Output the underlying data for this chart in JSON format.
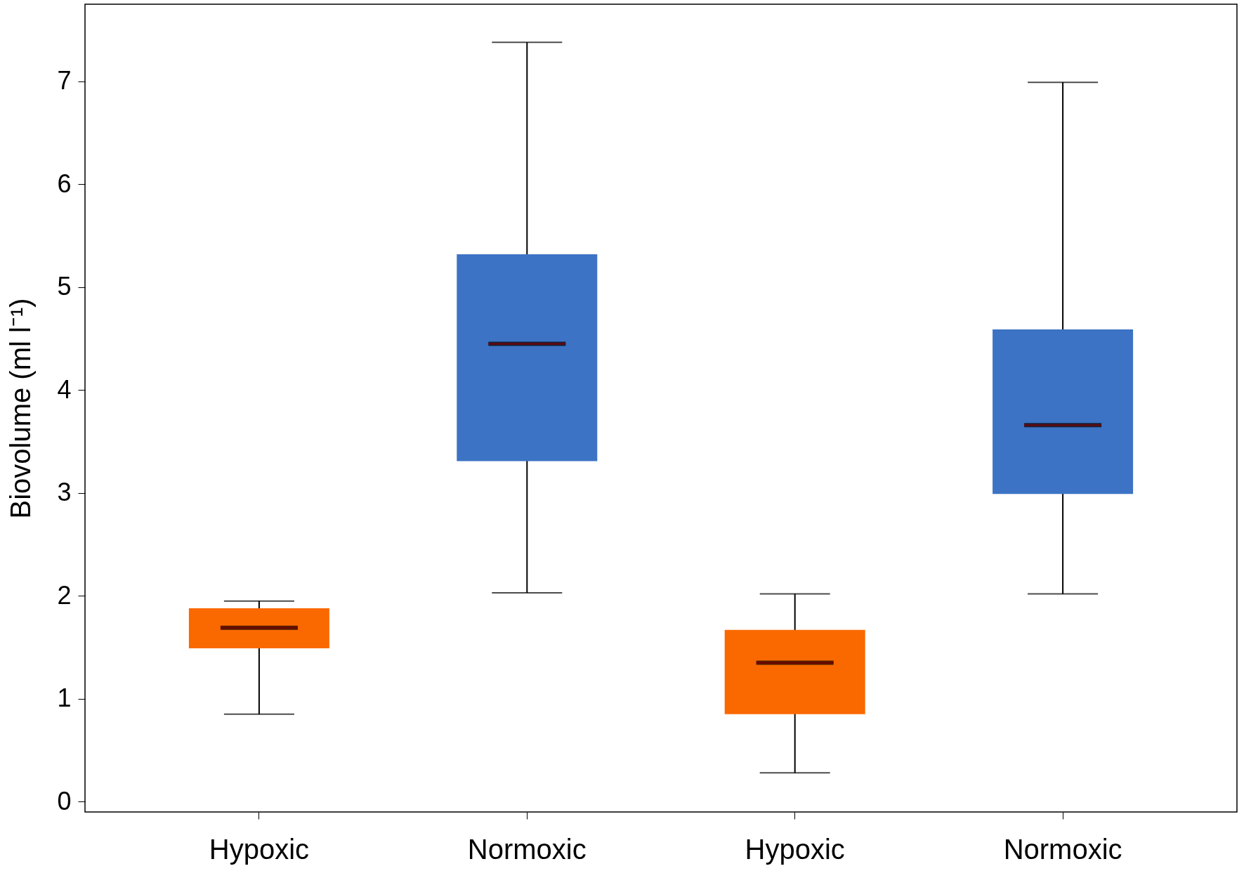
{
  "chart_data": {
    "type": "box",
    "ylabel": "Biovolume (ml l⁻¹)",
    "categories": [
      "Hypoxic",
      "Normoxic",
      "Hypoxic",
      "Normoxic"
    ],
    "boxes": [
      {
        "low": 0.85,
        "q1": 1.49,
        "median": 1.69,
        "q3": 1.88,
        "high": 1.95
      },
      {
        "low": 2.03,
        "q1": 3.31,
        "median": 4.45,
        "q3": 5.32,
        "high": 7.38
      },
      {
        "low": 0.28,
        "q1": 0.85,
        "median": 1.35,
        "q3": 1.67,
        "high": 2.02
      },
      {
        "low": 2.02,
        "q1": 2.99,
        "median": 3.66,
        "q3": 4.59,
        "high": 6.99
      }
    ],
    "colors": [
      "#fa6900",
      "#3c73c4",
      "#fa6900",
      "#3c73c4"
    ],
    "ylim": [
      -0.1,
      7.75
    ],
    "yticks": [
      0,
      1,
      2,
      3,
      4,
      5,
      6,
      7
    ],
    "grid": false
  }
}
